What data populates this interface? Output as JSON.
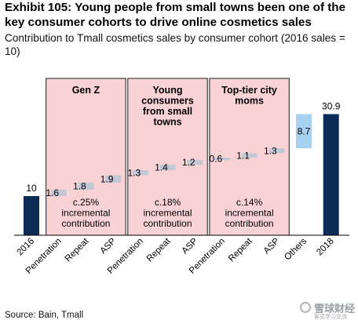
{
  "title": "Exhibit 105: Young people from small towns been one of the key consumer cohorts to drive online cosmetics sales",
  "subtitle": "Contribution to Tmall cosmetics sales by consumer cohort (2016 sales = 10)",
  "source": "Source: Bain, Tmall",
  "watermark": {
    "text": "雪球财经",
    "subtext": "客式学习交流"
  },
  "colors": {
    "navy": "#0d2b57",
    "bridge": "#c2c7d5",
    "light_blue": "#a8d1f0",
    "group_fill": "#f9d2d6",
    "group_border": "#1a1a1a"
  },
  "chart_data": {
    "type": "bar",
    "subtype": "waterfall",
    "categories": [
      "2016",
      "Penetration",
      "Repeat",
      "ASP",
      "Penetration",
      "Repeat",
      "ASP",
      "Penetration",
      "Repeat",
      "ASP",
      "Others",
      "2018"
    ],
    "values": [
      10,
      1.6,
      1.8,
      1.9,
      1.3,
      1.4,
      1.2,
      0.6,
      1.1,
      1.3,
      8.7,
      30.9
    ],
    "labels": [
      "10",
      "1.6",
      "1.8",
      "1.9",
      "1.3",
      "1.4",
      "1.2",
      "0.6",
      "1.1",
      "1.3",
      "8.7",
      "30.9"
    ],
    "bar_kind": [
      "total",
      "step",
      "step",
      "step",
      "step",
      "step",
      "step",
      "step",
      "step",
      "step",
      "step_light",
      "total"
    ],
    "ylim": [
      0,
      31
    ],
    "groups": [
      {
        "name": "Gen Z",
        "start": 1,
        "end": 3,
        "note": "c.25% incremental contribution"
      },
      {
        "name": "Young consumers from small towns",
        "start": 4,
        "end": 6,
        "note": "c.18% incremental contribution"
      },
      {
        "name": "Top-tier city moms",
        "start": 7,
        "end": 9,
        "note": "c.14% incremental contribution"
      }
    ]
  }
}
